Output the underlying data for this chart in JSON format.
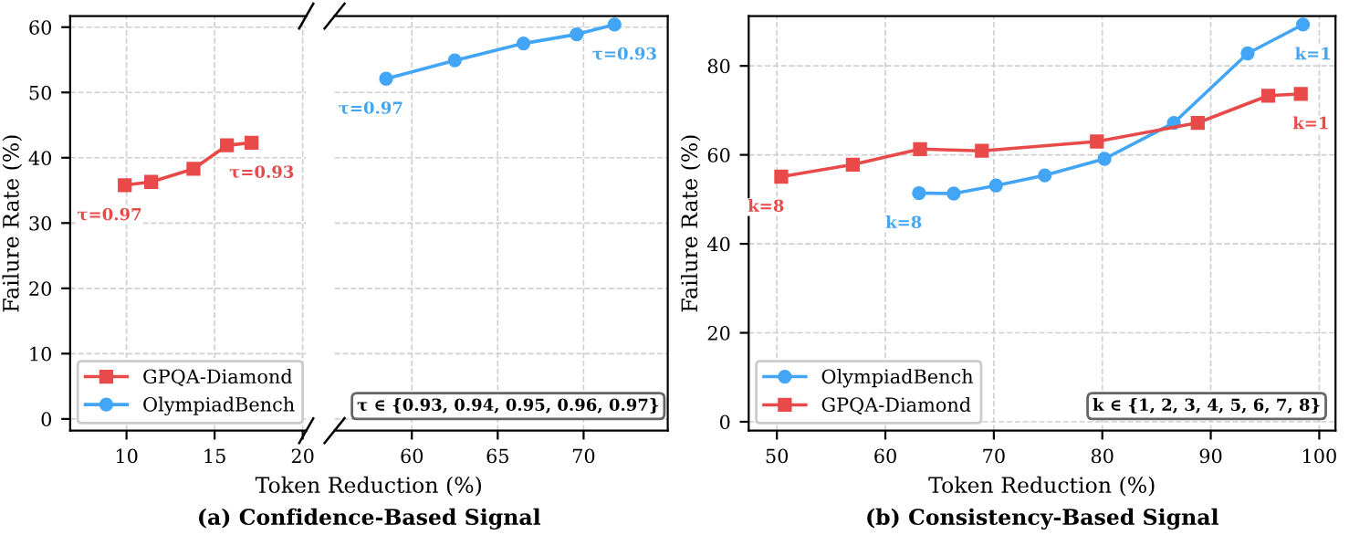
{
  "chart_data": [
    {
      "type": "line",
      "title": "(a) Confidence-Based Signal",
      "xlabel": "Token Reduction (%)",
      "ylabel": "Failure Rate (%)",
      "xlim": [
        6.8,
        20.2
      ],
      "xticks": [
        10,
        15,
        20
      ],
      "ylim": [
        -1.8,
        61.7
      ],
      "yticks": [
        0,
        10,
        20,
        30,
        40,
        50,
        60
      ],
      "grid": true,
      "legend": "bottom left",
      "tick_labels": true,
      "line_style": "solid",
      "series": [
        {
          "name": "GPQA-Diamond",
          "color": "#e84a4a",
          "marker": "square",
          "x": [
            9.9,
            11.4,
            13.8,
            15.7,
            17.1
          ],
          "values": [
            35.8,
            36.3,
            38.3,
            41.9,
            42.3
          ]
        }
      ],
      "annotations": [
        {
          "text": "τ=0.97",
          "x": 9.9,
          "y": 35.8
        },
        {
          "text": "τ=0.93",
          "x": 17.1,
          "y": 42.3
        }
      ]
    },
    {
      "type": "line",
      "xlim": [
        55.5,
        74.9
      ],
      "xticks": [
        60,
        65,
        70
      ],
      "ylim": [
        -1.8,
        61.7
      ],
      "yticks": [
        0,
        10,
        20,
        30,
        40,
        50,
        60
      ],
      "grid": true,
      "tick_labels": "x",
      "line_style": "solid",
      "series": [
        {
          "name": "OlympiadBench",
          "color": "#42a5f5",
          "marker": "circle",
          "x": [
            58.5,
            62.5,
            66.5,
            69.6,
            71.8
          ],
          "values": [
            52.1,
            54.9,
            57.5,
            58.9,
            60.4
          ]
        }
      ],
      "annotations": [
        "τ ∈ {0.93, 0.94, 0.95, 0.96, 0.97}",
        {
          "text": "τ=0.97",
          "x": 58.5,
          "y": 52.1
        },
        {
          "text": "τ=0.93",
          "x": 71.8,
          "y": 60.4
        }
      ]
    },
    {
      "type": "line",
      "title": "(b) Consistency-Based Signal",
      "xlabel": "Token Reduction (%)",
      "ylabel": "Failure Rate (%)",
      "xlim": [
        47.4,
        101.5
      ],
      "xticks": [
        50,
        60,
        70,
        80,
        90,
        100
      ],
      "ylim": [
        -2,
        91.2
      ],
      "yticks": [
        0,
        20,
        40,
        60,
        80
      ],
      "grid": true,
      "legend": "bottom left",
      "line_style": "solid",
      "series": [
        {
          "name": "OlympiadBench",
          "color": "#42a5f5",
          "marker": "circle",
          "x": [
            63.1,
            66.3,
            70.2,
            74.7,
            80.2,
            86.6,
            93.4,
            98.5
          ],
          "values": [
            51.4,
            51.3,
            53.1,
            55.4,
            59.1,
            67.2,
            82.8,
            89.3
          ]
        },
        {
          "name": "GPQA-Diamond",
          "color": "#e84a4a",
          "marker": "square",
          "x": [
            50.4,
            57.0,
            63.2,
            68.9,
            79.5,
            88.8,
            95.3,
            98.3
          ],
          "values": [
            55.1,
            57.8,
            61.3,
            60.9,
            63.0,
            67.2,
            73.3,
            73.7
          ]
        }
      ],
      "annotations": [
        "k ∈ {1, 2, 3, 4, 5, 6, 7, 8}",
        {
          "text": "k=8",
          "x": 63.1,
          "y": 51.4
        },
        {
          "text": "k=1",
          "x": 98.5,
          "y": 89.3
        },
        {
          "text": "k=8",
          "x": 50.4,
          "y": 55.1
        },
        {
          "text": "k=1",
          "x": 98.3,
          "y": 73.7
        }
      ]
    }
  ]
}
